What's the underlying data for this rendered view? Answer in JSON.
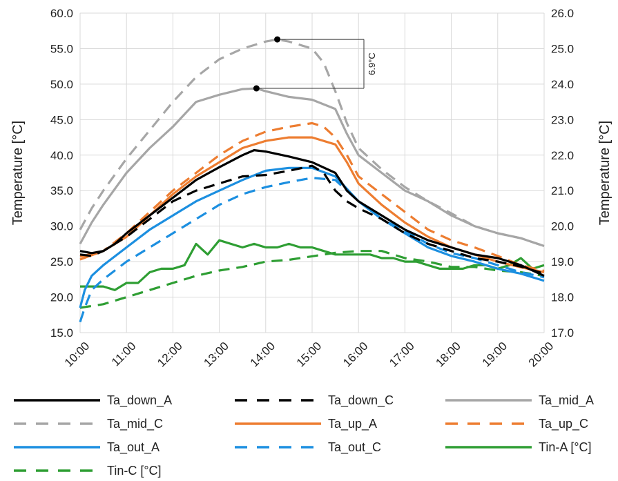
{
  "chart_data": {
    "type": "line",
    "xlabel": "",
    "ylabel_left": "Temperature [°C]",
    "ylabel_right": "Temperature [°C]",
    "x_ticks": [
      "10:00",
      "11:00",
      "12:00",
      "13:00",
      "14:00",
      "15:00",
      "16:00",
      "17:00",
      "18:00",
      "19:00",
      "20:00"
    ],
    "x_range": [
      10,
      20
    ],
    "y_left_ticks": [
      "15.0",
      "20.0",
      "25.0",
      "30.0",
      "35.0",
      "40.0",
      "45.0",
      "50.0",
      "55.0",
      "60.0"
    ],
    "y_left_range": [
      15,
      60
    ],
    "y_right_ticks": [
      "17.0",
      "18.0",
      "19.0",
      "20.0",
      "21.0",
      "22.0",
      "23.0",
      "24.0",
      "25.0",
      "26.0"
    ],
    "y_right_range": [
      17,
      26
    ],
    "grid": true,
    "legend_position": "bottom",
    "annotation": {
      "label": "6.9°C",
      "peak_mid_C": {
        "x": 14.25,
        "y": 56.3
      },
      "peak_mid_A": {
        "x": 13.8,
        "y": 49.4
      }
    },
    "series": [
      {
        "name": "Ta_down_A",
        "color": "#000000",
        "dash": "solid",
        "axis": "left",
        "x": [
          10,
          10.25,
          10.5,
          10.75,
          11,
          11.5,
          12,
          12.5,
          13,
          13.5,
          13.75,
          14,
          14.5,
          15,
          15.5,
          15.75,
          16,
          16.5,
          17,
          17.5,
          18,
          18.5,
          19,
          19.5,
          20
        ],
        "y": [
          26.5,
          26.2,
          26.5,
          27.5,
          29,
          31.5,
          34,
          36.5,
          38.3,
          40,
          40.7,
          40.5,
          39.8,
          39,
          37.5,
          35,
          33.5,
          31.5,
          29.5,
          28,
          27,
          26,
          25.5,
          24.5,
          23
        ]
      },
      {
        "name": "Ta_down_C",
        "color": "#000000",
        "dash": "dashed",
        "axis": "left",
        "x": [
          10,
          10.25,
          10.5,
          11,
          11.5,
          12,
          12.5,
          13,
          13.5,
          14,
          14.5,
          15,
          15.25,
          15.5,
          15.75,
          16,
          16.5,
          17,
          17.5,
          18,
          18.5,
          19,
          19.5,
          20
        ],
        "y": [
          26,
          25.8,
          26.5,
          28.5,
          31,
          33.5,
          35,
          36,
          37,
          37.2,
          37.8,
          38.5,
          37.5,
          35,
          33.5,
          32.5,
          31,
          29,
          27.5,
          26.5,
          25.5,
          25,
          24.3,
          23.3
        ]
      },
      {
        "name": "Ta_mid_A",
        "color": "#a6a6a6",
        "dash": "solid",
        "axis": "left",
        "x": [
          10,
          10.25,
          10.5,
          11,
          11.5,
          12,
          12.5,
          13,
          13.5,
          13.8,
          14,
          14.5,
          15,
          15.5,
          15.75,
          16,
          16.5,
          17,
          17.5,
          18,
          18.5,
          19,
          19.5,
          20
        ],
        "y": [
          27.5,
          30.5,
          33,
          37.5,
          41,
          44,
          47.5,
          48.5,
          49.3,
          49.4,
          49,
          48.2,
          47.8,
          46.5,
          43,
          40,
          37.5,
          35,
          33.5,
          31.5,
          30,
          29,
          28.3,
          27.2
        ]
      },
      {
        "name": "Ta_mid_C",
        "color": "#a6a6a6",
        "dash": "dashed",
        "axis": "left",
        "x": [
          10,
          10.25,
          10.5,
          11,
          11.5,
          12,
          12.5,
          13,
          13.5,
          14,
          14.25,
          14.5,
          15,
          15.25,
          15.5,
          15.75,
          16,
          16.5,
          17,
          17.5,
          18,
          18.5,
          19,
          19.5,
          20
        ],
        "y": [
          29.5,
          32.5,
          35,
          39.5,
          43.5,
          47.5,
          51,
          53.5,
          55,
          56,
          56.3,
          56,
          55,
          53,
          49,
          44.5,
          41,
          38,
          35.5,
          33.5,
          31.8,
          30,
          29,
          28.3,
          27.2
        ]
      },
      {
        "name": "Ta_up_A",
        "color": "#ed7d31",
        "dash": "solid",
        "axis": "left",
        "x": [
          10,
          10.5,
          11,
          11.5,
          12,
          12.5,
          13,
          13.5,
          14,
          14.5,
          15,
          15.5,
          15.75,
          16,
          16.5,
          17,
          17.5,
          18,
          18.5,
          19,
          19.5,
          20
        ],
        "y": [
          25.3,
          26.5,
          28.5,
          31.5,
          34.5,
          37,
          39,
          41,
          42,
          42.5,
          42.5,
          41.5,
          39,
          36,
          33,
          30.5,
          28.5,
          27,
          26,
          25,
          24.2,
          23.5
        ]
      },
      {
        "name": "Ta_up_C",
        "color": "#ed7d31",
        "dash": "dashed",
        "axis": "left",
        "x": [
          10,
          10.5,
          11,
          11.5,
          12,
          12.5,
          13,
          13.5,
          14,
          14.5,
          15,
          15.25,
          15.5,
          15.75,
          16,
          16.5,
          17,
          17.5,
          18,
          18.5,
          19,
          19.5,
          20
        ],
        "y": [
          25.7,
          26.5,
          29,
          32,
          35,
          37.5,
          40,
          42,
          43.3,
          44,
          44.5,
          44,
          42.5,
          40,
          37,
          34.5,
          32,
          29.5,
          28,
          27,
          25.8,
          24.5,
          23.7
        ]
      },
      {
        "name": "Ta_out_A",
        "color": "#1c8fe0",
        "dash": "solid",
        "axis": "left",
        "x": [
          10,
          10.1,
          10.25,
          10.5,
          11,
          11.5,
          12,
          12.5,
          13,
          13.5,
          14,
          14.5,
          15,
          15.5,
          16,
          16.5,
          17,
          17.5,
          18,
          18.5,
          19,
          19.5,
          20
        ],
        "y": [
          18.5,
          21,
          23,
          24.5,
          27,
          29.5,
          31.5,
          33.5,
          35,
          36.5,
          37.8,
          38.2,
          38.2,
          37,
          33.5,
          31,
          29,
          27,
          25.8,
          25,
          24,
          23.3,
          22.3
        ]
      },
      {
        "name": "Ta_out_C",
        "color": "#1c8fe0",
        "dash": "dashed",
        "axis": "left",
        "x": [
          10,
          10.1,
          10.25,
          10.5,
          11,
          11.5,
          12,
          12.5,
          13,
          13.5,
          14,
          14.5,
          15,
          15.5,
          16,
          16.5,
          17,
          17.5,
          18,
          18.5,
          19,
          19.5,
          20
        ],
        "y": [
          16.5,
          18.5,
          21,
          22.5,
          25,
          27,
          29,
          31,
          33,
          34.5,
          35.5,
          36.2,
          36.8,
          36.5,
          33.5,
          31,
          29.3,
          27.5,
          26.2,
          25.5,
          24.5,
          23.5,
          22.8
        ]
      },
      {
        "name": "Tin-A [°C]",
        "color": "#2e9e33",
        "dash": "solid",
        "axis": "right",
        "x": [
          10,
          10.25,
          10.5,
          10.75,
          11,
          11.25,
          11.5,
          11.75,
          12,
          12.25,
          12.5,
          12.75,
          13,
          13.25,
          13.5,
          13.75,
          14,
          14.25,
          14.5,
          14.75,
          15,
          15.25,
          15.5,
          15.75,
          16,
          16.25,
          16.5,
          16.75,
          17,
          17.25,
          17.5,
          17.75,
          18,
          18.25,
          18.5,
          18.75,
          19,
          19.25,
          19.5,
          19.75,
          20
        ],
        "y": [
          18.3,
          18.3,
          18.3,
          18.2,
          18.4,
          18.4,
          18.7,
          18.8,
          18.8,
          18.9,
          19.5,
          19.2,
          19.6,
          19.5,
          19.4,
          19.5,
          19.4,
          19.4,
          19.5,
          19.4,
          19.4,
          19.3,
          19.2,
          19.2,
          19.2,
          19.2,
          19.1,
          19.1,
          19.0,
          19.0,
          18.9,
          18.8,
          18.8,
          18.8,
          18.9,
          18.9,
          18.8,
          18.9,
          19.1,
          18.8,
          18.9
        ]
      },
      {
        "name": "Tin-C [°C]",
        "color": "#2e9e33",
        "dash": "dashed",
        "axis": "right",
        "x": [
          10,
          10.5,
          11,
          11.5,
          12,
          12.5,
          13,
          13.5,
          14,
          14.5,
          15,
          15.5,
          16,
          16.5,
          17,
          17.5,
          18,
          18.5,
          19,
          19.5,
          20
        ],
        "y": [
          17.7,
          17.8,
          18.0,
          18.2,
          18.4,
          18.6,
          18.75,
          18.85,
          19.0,
          19.05,
          19.15,
          19.25,
          19.3,
          19.3,
          19.1,
          19.0,
          18.85,
          18.85,
          18.75,
          18.7,
          18.6
        ]
      }
    ]
  }
}
